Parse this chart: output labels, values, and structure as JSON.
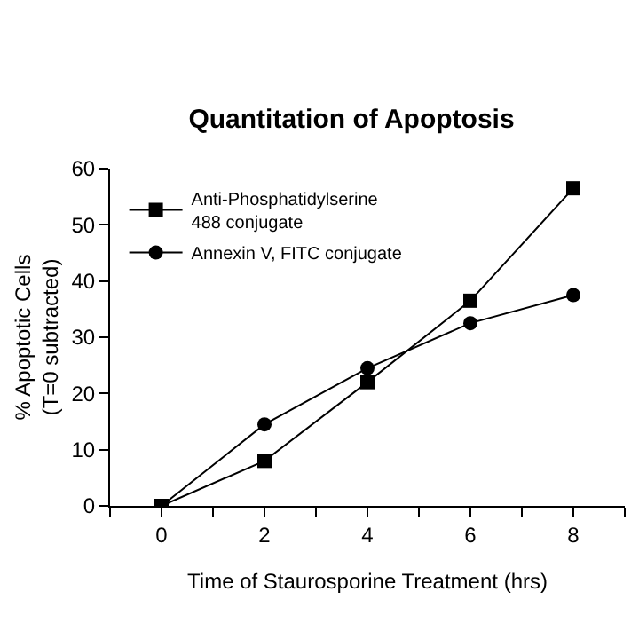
{
  "chart_data": {
    "type": "line",
    "title": "Quantitation of Apoptosis",
    "xlabel": "Time of Staurosporine Treatment (hrs)",
    "ylabel": "% Apoptotic Cells\n(T=0 subtracted)",
    "x": [
      0,
      2,
      4,
      6,
      8
    ],
    "series": [
      {
        "name": "Anti-Phosphatidylserine\n488 conjugate",
        "color": "#000000",
        "marker": "square",
        "values": [
          0,
          8,
          22,
          36.5,
          56.5
        ]
      },
      {
        "name": "Annexin V, FITC conjugate",
        "color": "#000000",
        "marker": "circle",
        "values": [
          0,
          14.5,
          24.5,
          32.5,
          37.5
        ]
      }
    ],
    "xlim": [
      -1,
      9
    ],
    "xticks": [
      {
        "value": -1,
        "label": null
      },
      0,
      {
        "value": 1,
        "label": null
      },
      2,
      {
        "value": 3,
        "label": null
      },
      4,
      {
        "value": 5,
        "label": null
      },
      6,
      {
        "value": 7,
        "label": null
      },
      8,
      {
        "value": 9,
        "label": null
      }
    ],
    "ylim": [
      0,
      60
    ],
    "yticks": [
      0,
      10,
      20,
      30,
      40,
      50,
      60
    ],
    "legend": "top left",
    "line_style": "solid"
  }
}
